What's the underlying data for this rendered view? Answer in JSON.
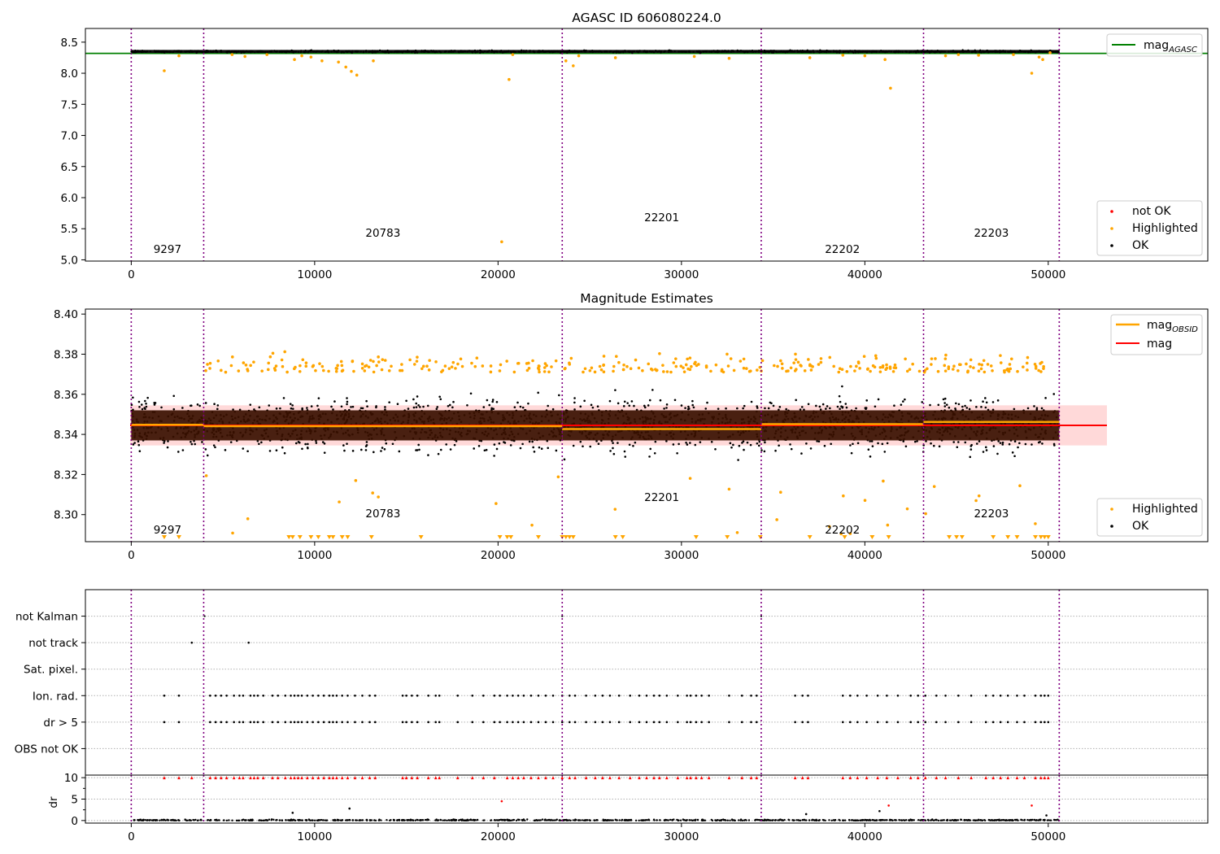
{
  "chart_data": [
    {
      "id": "agasc",
      "type": "scatter",
      "title": "AGASC ID 606080224.0",
      "xlim": [
        -2500,
        58700
      ],
      "ylim": [
        4.98,
        8.72
      ],
      "xticks": [
        0,
        10000,
        20000,
        30000,
        40000,
        50000
      ],
      "yticks": [
        5.0,
        5.5,
        6.0,
        6.5,
        7.0,
        7.5,
        8.0,
        8.5
      ],
      "ytick_labels": [
        "5.0",
        "5.5",
        "6.0",
        "6.5",
        "7.0",
        "7.5",
        "8.0",
        "8.5"
      ],
      "mag_agasc": 8.32,
      "ok_band": {
        "x": [
          0,
          50600
        ],
        "y": [
          8.325,
          8.375
        ]
      },
      "highlighted": [
        [
          1800,
          8.04
        ],
        [
          2600,
          8.28
        ],
        [
          5500,
          8.3
        ],
        [
          6200,
          8.27
        ],
        [
          7400,
          8.3
        ],
        [
          8900,
          8.22
        ],
        [
          9300,
          8.28
        ],
        [
          9800,
          8.26
        ],
        [
          10400,
          8.2
        ],
        [
          11300,
          8.18
        ],
        [
          11700,
          8.1
        ],
        [
          12000,
          8.03
        ],
        [
          12300,
          7.97
        ],
        [
          13200,
          8.2
        ],
        [
          20200,
          5.29
        ],
        [
          20600,
          7.9
        ],
        [
          20800,
          8.3
        ],
        [
          23700,
          8.2
        ],
        [
          24100,
          8.12
        ],
        [
          24400,
          8.28
        ],
        [
          26400,
          8.25
        ],
        [
          30700,
          8.27
        ],
        [
          32600,
          8.24
        ],
        [
          37000,
          8.25
        ],
        [
          38800,
          8.29
        ],
        [
          40000,
          8.28
        ],
        [
          41100,
          8.22
        ],
        [
          41400,
          7.76
        ],
        [
          44400,
          8.28
        ],
        [
          45100,
          8.3
        ],
        [
          46200,
          8.29
        ],
        [
          48100,
          8.3
        ],
        [
          49100,
          8.0
        ],
        [
          49500,
          8.26
        ],
        [
          49700,
          8.22
        ],
        [
          50100,
          8.33
        ]
      ],
      "legend_lines": [
        {
          "label": "mag",
          "sub": "AGASC",
          "color": "#008000"
        }
      ],
      "legend_points": [
        {
          "label": "not OK",
          "color": "#ff0000"
        },
        {
          "label": "Highlighted",
          "color": "#ffa500"
        },
        {
          "label": "OK",
          "color": "#000000"
        }
      ]
    },
    {
      "id": "estimates",
      "type": "scatter",
      "title": "Magnitude Estimates",
      "xlim": [
        -2500,
        58700
      ],
      "ylim": [
        8.2865,
        8.4025
      ],
      "xticks": [
        0,
        10000,
        20000,
        30000,
        40000,
        50000
      ],
      "yticks": [
        8.3,
        8.32,
        8.34,
        8.36,
        8.38,
        8.4
      ],
      "ytick_labels": [
        "8.30",
        "8.32",
        "8.34",
        "8.36",
        "8.38",
        "8.40"
      ],
      "mag": 8.3445,
      "mag_band": [
        8.3345,
        8.3545
      ],
      "obsid_mag": [
        {
          "x": [
            0,
            3950
          ],
          "y": 8.3448
        },
        {
          "x": [
            3950,
            23500
          ],
          "y": 8.3441
        },
        {
          "x": [
            23500,
            34350
          ],
          "y": 8.3427
        },
        {
          "x": [
            34350,
            43200
          ],
          "y": 8.3451
        },
        {
          "x": [
            43200,
            50600
          ],
          "y": 8.3462
        }
      ],
      "highlighted_below_axis_x": [
        1800,
        2600,
        8600,
        8800,
        9200,
        9800,
        10200,
        10800,
        11000,
        11500,
        11800,
        13100,
        15800,
        20100,
        20500,
        20700,
        22200,
        23500,
        23700,
        23900,
        24100,
        26400,
        26800,
        30800,
        32500,
        34300,
        37000,
        38900,
        40400,
        41300,
        44600,
        45000,
        45300,
        47000,
        47800,
        48300,
        49300,
        49600,
        49800,
        50000
      ],
      "legend_lines": [
        {
          "label": "mag",
          "sub": "OBSID",
          "color": "#ffa500"
        },
        {
          "label": "mag",
          "sub": "",
          "color": "#ff0000"
        }
      ],
      "legend_points": [
        {
          "label": "Highlighted",
          "color": "#ffa500"
        },
        {
          "label": "OK",
          "color": "#000000"
        }
      ]
    },
    {
      "id": "flags",
      "type": "scatter",
      "title": "",
      "xlim": [
        -2500,
        58700
      ],
      "ylim": [
        -1,
        6
      ],
      "xticks": [
        0,
        10000,
        20000,
        30000,
        40000,
        50000
      ],
      "rows": [
        "not Kalman",
        "not track",
        "Sat. pixel.",
        "Ion. rad.",
        "dr > 5",
        "OBS not OK"
      ],
      "not_track_x": [
        3300,
        6400
      ],
      "not_kalman_x": [
        4000,
        23500,
        34350
      ],
      "ion_rad_x": [
        1800,
        2600,
        4300,
        4600,
        4900,
        5200,
        5600,
        5900,
        6100,
        6500,
        6700,
        6900,
        7200,
        7700,
        8000,
        8400,
        8700,
        8900,
        9100,
        9300,
        9600,
        9900,
        10200,
        10500,
        10800,
        11000,
        11200,
        11500,
        11800,
        12200,
        12600,
        13000,
        13300,
        14800,
        15000,
        15300,
        15600,
        16200,
        16600,
        16800,
        17800,
        18600,
        19200,
        19800,
        20100,
        20500,
        20800,
        21100,
        21400,
        21800,
        22200,
        22600,
        23000,
        23500,
        23900,
        24200,
        24800,
        25300,
        25700,
        26100,
        26600,
        27200,
        27700,
        28100,
        28500,
        28800,
        29200,
        29800,
        30300,
        30500,
        30800,
        31100,
        31500,
        32600,
        33300,
        33800,
        34100,
        36200,
        36600,
        36900,
        38800,
        39200,
        39600,
        40100,
        40700,
        41200,
        41800,
        42500,
        42900,
        43300,
        43900,
        44400,
        45100,
        45800,
        46600,
        47000,
        47400,
        47800,
        48300,
        48700,
        49300,
        49600,
        49800,
        50000
      ],
      "dr_panel": {
        "ylabel": "dr",
        "ylim": [
          -0.6,
          10.6
        ],
        "yticks": [
          0,
          5,
          10
        ],
        "ytick_labels": [
          "0",
          "5",
          "10"
        ],
        "clipped_at_10_x": [
          1800,
          2600,
          3300,
          4300,
          4600,
          4900,
          5200,
          5600,
          5900,
          6100,
          6500,
          6700,
          6900,
          7200,
          7700,
          8000,
          8400,
          8700,
          8900,
          9100,
          9300,
          9600,
          9900,
          10200,
          10500,
          10800,
          11000,
          11200,
          11500,
          11800,
          12200,
          12600,
          13000,
          13300,
          14800,
          15000,
          15300,
          15600,
          16200,
          16600,
          16800,
          17800,
          18600,
          19200,
          19800,
          20500,
          20800,
          21100,
          21400,
          21800,
          22200,
          22600,
          23000,
          23500,
          23900,
          24200,
          24800,
          25300,
          25700,
          26100,
          26600,
          27200,
          27700,
          28100,
          28500,
          28800,
          29200,
          29800,
          30300,
          30500,
          30800,
          31100,
          31500,
          32600,
          33300,
          33800,
          34100,
          36200,
          36600,
          36900,
          38800,
          39200,
          39600,
          40100,
          40700,
          41200,
          41800,
          42500,
          42900,
          43300,
          43900,
          44400,
          45100,
          45800,
          46600,
          47000,
          47400,
          47800,
          48300,
          48700,
          49300,
          49600,
          49800,
          50000
        ],
        "outliers": [
          [
            20200,
            4.5
          ],
          [
            41300,
            3.5
          ],
          [
            49100,
            3.5
          ]
        ],
        "ok_outliers": [
          [
            8800,
            1.8
          ],
          [
            11900,
            2.8
          ],
          [
            36800,
            1.5
          ],
          [
            40800,
            2.2
          ],
          [
            49900,
            1.2
          ]
        ]
      }
    }
  ],
  "obsids": [
    {
      "label": "9297",
      "start": 0,
      "end": 3950
    },
    {
      "label": "20783",
      "start": 3950,
      "end": 23500
    },
    {
      "label": "22201",
      "start": 23500,
      "end": 34350
    },
    {
      "label": "22202",
      "start": 34350,
      "end": 43200
    },
    {
      "label": "22203",
      "start": 43200,
      "end": 50600
    }
  ],
  "colors": {
    "ok": "#000000",
    "highlighted": "#ffa500",
    "not_ok": "#ff0000",
    "obsid_boundary": "#800080",
    "agasc_line": "#008000",
    "mag_line": "#ff0000",
    "mag_band": "#ffc0c0",
    "obsid_mag": "#ffa500",
    "dense_band": "#3a1000"
  }
}
